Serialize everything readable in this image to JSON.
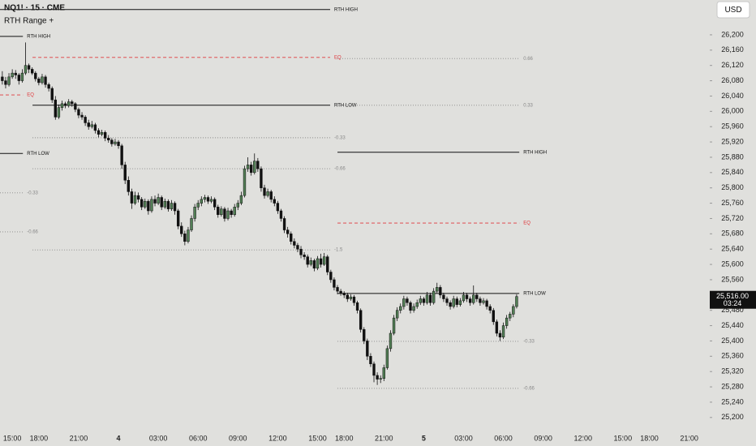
{
  "header": {
    "symbol": "NQ1! · 15 · CME",
    "indicator": "RTH Range +"
  },
  "currency": "USD",
  "chart_data": {
    "type": "candlestick",
    "up_color": "#527f55",
    "down_color": "#111111",
    "xlim": [
      -0.7,
      213.2
    ],
    "xticks": [
      {
        "value": 3,
        "label": "15:00"
      },
      {
        "value": 11,
        "label": "18:00"
      },
      {
        "value": 23,
        "label": "21:00"
      },
      {
        "value": 35,
        "label": "4"
      },
      {
        "value": 47,
        "label": "03:00"
      },
      {
        "value": 59,
        "label": "06:00"
      },
      {
        "value": 71,
        "label": "09:00"
      },
      {
        "value": 83,
        "label": "12:00"
      },
      {
        "value": 95,
        "label": "15:00"
      },
      {
        "value": 103,
        "label": "18:00"
      },
      {
        "value": 115,
        "label": "21:00"
      },
      {
        "value": 127,
        "label": "5"
      },
      {
        "value": 139,
        "label": "03:00"
      },
      {
        "value": 151,
        "label": "06:00"
      },
      {
        "value": 163,
        "label": "09:00"
      },
      {
        "value": 175,
        "label": "12:00"
      },
      {
        "value": 187,
        "label": "15:00"
      },
      {
        "value": 195,
        "label": "18:00"
      },
      {
        "value": 207,
        "label": "21:00"
      }
    ],
    "ylim": [
      25153,
      26291
    ],
    "yticks": [
      {
        "value": 25200,
        "label": "25,200"
      },
      {
        "value": 25240,
        "label": "25,240"
      },
      {
        "value": 25280,
        "label": "25,280"
      },
      {
        "value": 25320,
        "label": "25,320"
      },
      {
        "value": 25360,
        "label": "25,360"
      },
      {
        "value": 25400,
        "label": "25,400"
      },
      {
        "value": 25440,
        "label": "25,440"
      },
      {
        "value": 25480,
        "label": "25,480"
      },
      {
        "value": 25520,
        "label": "25,520"
      },
      {
        "value": 25560,
        "label": "25,560"
      },
      {
        "value": 25600,
        "label": "25,600"
      },
      {
        "value": 25640,
        "label": "25,640"
      },
      {
        "value": 25680,
        "label": "25,680"
      },
      {
        "value": 25720,
        "label": "25,720"
      },
      {
        "value": 25760,
        "label": "25,760"
      },
      {
        "value": 25800,
        "label": "25,800"
      },
      {
        "value": 25840,
        "label": "25,840"
      },
      {
        "value": 25880,
        "label": "25,880"
      },
      {
        "value": 25920,
        "label": "25,920"
      },
      {
        "value": 25960,
        "label": "25,960"
      },
      {
        "value": 26000,
        "label": "26,000"
      },
      {
        "value": 26040,
        "label": "26,040"
      },
      {
        "value": 26080,
        "label": "26,080"
      },
      {
        "value": 26120,
        "label": "26,120"
      },
      {
        "value": 26160,
        "label": "26,160"
      },
      {
        "value": 26200,
        "label": "26,200"
      }
    ],
    "candles": [
      [
        26090,
        26105,
        26070,
        26080
      ],
      [
        26080,
        26090,
        26060,
        26070
      ],
      [
        26070,
        26100,
        26065,
        26090
      ],
      [
        26090,
        26110,
        26085,
        26100
      ],
      [
        26100,
        26108,
        26085,
        26095
      ],
      [
        26095,
        26100,
        26070,
        26080
      ],
      [
        26080,
        26110,
        26075,
        26100
      ],
      [
        26100,
        26180,
        26095,
        26120
      ],
      [
        26120,
        26125,
        26100,
        26110
      ],
      [
        26110,
        26115,
        26095,
        26100
      ],
      [
        26100,
        26105,
        26078,
        26085
      ],
      [
        26085,
        26090,
        26068,
        26075
      ],
      [
        26075,
        26098,
        26070,
        26090
      ],
      [
        26090,
        26095,
        26062,
        26070
      ],
      [
        26070,
        26075,
        26052,
        26060
      ],
      [
        26060,
        26065,
        26022,
        26030
      ],
      [
        26030,
        26040,
        25978,
        25985
      ],
      [
        25985,
        26018,
        25980,
        26010
      ],
      [
        26010,
        26028,
        26002,
        26020
      ],
      [
        26020,
        26025,
        26008,
        26015
      ],
      [
        26015,
        26032,
        26010,
        26025
      ],
      [
        26025,
        26030,
        26012,
        26020
      ],
      [
        26020,
        26024,
        25998,
        26005
      ],
      [
        26005,
        26010,
        25982,
        25990
      ],
      [
        25990,
        25998,
        25978,
        25985
      ],
      [
        25985,
        25990,
        25962,
        25970
      ],
      [
        25970,
        25978,
        25952,
        25960
      ],
      [
        25960,
        25975,
        25955,
        25965
      ],
      [
        25965,
        25970,
        25942,
        25950
      ],
      [
        25950,
        25956,
        25932,
        25940
      ],
      [
        25940,
        25952,
        25935,
        25945
      ],
      [
        25945,
        25950,
        25922,
        25930
      ],
      [
        25930,
        25938,
        25918,
        25925
      ],
      [
        25925,
        25930,
        25908,
        25915
      ],
      [
        25915,
        25928,
        25910,
        25920
      ],
      [
        25920,
        25925,
        25902,
        25910
      ],
      [
        25910,
        25915,
        25850,
        25860
      ],
      [
        25860,
        25868,
        25810,
        25820
      ],
      [
        25820,
        25830,
        25780,
        25790
      ],
      [
        25790,
        25798,
        25745,
        25760
      ],
      [
        25760,
        25790,
        25755,
        25780
      ],
      [
        25780,
        25788,
        25762,
        25770
      ],
      [
        25770,
        25776,
        25742,
        25750
      ],
      [
        25750,
        25772,
        25745,
        25765
      ],
      [
        25765,
        25770,
        25730,
        25740
      ],
      [
        25740,
        25778,
        25735,
        25770
      ],
      [
        25770,
        25780,
        25752,
        25760
      ],
      [
        25760,
        25785,
        25755,
        25775
      ],
      [
        25775,
        25780,
        25742,
        25750
      ],
      [
        25750,
        25772,
        25745,
        25765
      ],
      [
        25765,
        25770,
        25738,
        25745
      ],
      [
        25745,
        25768,
        25740,
        25760
      ],
      [
        25760,
        25765,
        25730,
        25740
      ],
      [
        25740,
        25745,
        25692,
        25700
      ],
      [
        25700,
        25710,
        25672,
        25680
      ],
      [
        25680,
        25688,
        25650,
        25660
      ],
      [
        25660,
        25698,
        25655,
        25690
      ],
      [
        25690,
        25728,
        25685,
        25720
      ],
      [
        25720,
        25758,
        25712,
        25750
      ],
      [
        25750,
        25768,
        25742,
        25760
      ],
      [
        25760,
        25778,
        25752,
        25770
      ],
      [
        25770,
        25782,
        25762,
        25775
      ],
      [
        25775,
        25780,
        25758,
        25765
      ],
      [
        25765,
        25778,
        25760,
        25770
      ],
      [
        25770,
        25775,
        25742,
        25750
      ],
      [
        25750,
        25756,
        25722,
        25730
      ],
      [
        25730,
        25752,
        25725,
        25745
      ],
      [
        25745,
        25750,
        25712,
        25720
      ],
      [
        25720,
        25748,
        25715,
        25740
      ],
      [
        25740,
        25745,
        25722,
        25730
      ],
      [
        25730,
        25758,
        25725,
        25750
      ],
      [
        25750,
        25768,
        25742,
        25760
      ],
      [
        25760,
        25790,
        25755,
        25780
      ],
      [
        25780,
        25858,
        25775,
        25850
      ],
      [
        25850,
        25880,
        25842,
        25860
      ],
      [
        25860,
        25868,
        25832,
        25840
      ],
      [
        25840,
        25890,
        25835,
        25870
      ],
      [
        25870,
        25878,
        25842,
        25850
      ],
      [
        25850,
        25856,
        25790,
        25800
      ],
      [
        25800,
        25808,
        25772,
        25780
      ],
      [
        25780,
        25798,
        25775,
        25790
      ],
      [
        25790,
        25795,
        25762,
        25770
      ],
      [
        25770,
        25778,
        25752,
        25760
      ],
      [
        25760,
        25766,
        25732,
        25740
      ],
      [
        25740,
        25745,
        25712,
        25720
      ],
      [
        25720,
        25726,
        25682,
        25690
      ],
      [
        25690,
        25698,
        25670,
        25680
      ],
      [
        25680,
        25686,
        25652,
        25660
      ],
      [
        25660,
        25668,
        25642,
        25650
      ],
      [
        25650,
        25656,
        25632,
        25640
      ],
      [
        25640,
        25648,
        25616,
        25625
      ],
      [
        25625,
        25632,
        25612,
        25620
      ],
      [
        25620,
        25626,
        25592,
        25600
      ],
      [
        25600,
        25618,
        25595,
        25610
      ],
      [
        25610,
        25615,
        25582,
        25590
      ],
      [
        25590,
        25622,
        25585,
        25615
      ],
      [
        25615,
        25628,
        25592,
        25600
      ],
      [
        25600,
        25630,
        25596,
        25620
      ],
      [
        25620,
        25625,
        25572,
        25580
      ],
      [
        25580,
        25586,
        25552,
        25560
      ],
      [
        25560,
        25566,
        25532,
        25540
      ],
      [
        25540,
        25546,
        25522,
        25530
      ],
      [
        25530,
        25536,
        25518,
        25525
      ],
      [
        25525,
        25530,
        25512,
        25520
      ],
      [
        25520,
        25526,
        25502,
        25510
      ],
      [
        25510,
        25522,
        25505,
        25515
      ],
      [
        25515,
        25520,
        25492,
        25500
      ],
      [
        25500,
        25505,
        25472,
        25480
      ],
      [
        25480,
        25485,
        25422,
        25430
      ],
      [
        25430,
        25436,
        25392,
        25400
      ],
      [
        25400,
        25406,
        25350,
        25360
      ],
      [
        25360,
        25368,
        25332,
        25340
      ],
      [
        25340,
        25346,
        25292,
        25310
      ],
      [
        25310,
        25318,
        25285,
        25300
      ],
      [
        25300,
        25310,
        25290,
        25302
      ],
      [
        25302,
        25338,
        25295,
        25330
      ],
      [
        25330,
        25388,
        25325,
        25380
      ],
      [
        25380,
        25428,
        25372,
        25420
      ],
      [
        25420,
        25468,
        25415,
        25460
      ],
      [
        25460,
        25488,
        25452,
        25480
      ],
      [
        25480,
        25498,
        25472,
        25490
      ],
      [
        25490,
        25518,
        25482,
        25510
      ],
      [
        25510,
        25516,
        25492,
        25500
      ],
      [
        25500,
        25505,
        25472,
        25480
      ],
      [
        25480,
        25498,
        25474,
        25490
      ],
      [
        25490,
        25508,
        25484,
        25500
      ],
      [
        25500,
        25518,
        25494,
        25510
      ],
      [
        25510,
        25515,
        25492,
        25500
      ],
      [
        25500,
        25528,
        25495,
        25520
      ],
      [
        25520,
        25526,
        25492,
        25500
      ],
      [
        25500,
        25538,
        25495,
        25530
      ],
      [
        25530,
        25552,
        25525,
        25540
      ],
      [
        25540,
        25546,
        25512,
        25520
      ],
      [
        25520,
        25526,
        25502,
        25510
      ],
      [
        25510,
        25516,
        25492,
        25500
      ],
      [
        25500,
        25506,
        25482,
        25490
      ],
      [
        25490,
        25518,
        25485,
        25510
      ],
      [
        25510,
        25516,
        25488,
        25495
      ],
      [
        25495,
        25512,
        25490,
        25505
      ],
      [
        25505,
        25528,
        25500,
        25520
      ],
      [
        25520,
        25526,
        25502,
        25510
      ],
      [
        25510,
        25516,
        25492,
        25500
      ],
      [
        25500,
        25545,
        25495,
        25520
      ],
      [
        25520,
        25526,
        25502,
        25510
      ],
      [
        25510,
        25516,
        25492,
        25500
      ],
      [
        25500,
        25512,
        25495,
        25505
      ],
      [
        25505,
        25510,
        25482,
        25490
      ],
      [
        25490,
        25496,
        25472,
        25480
      ],
      [
        25480,
        25486,
        25442,
        25450
      ],
      [
        25450,
        25456,
        25412,
        25420
      ],
      [
        25420,
        25428,
        25400,
        25410
      ],
      [
        25410,
        25448,
        25405,
        25440
      ],
      [
        25440,
        25468,
        25432,
        25460
      ],
      [
        25460,
        25476,
        25452,
        25470
      ],
      [
        25470,
        25496,
        25462,
        25490
      ],
      [
        25490,
        25522,
        25485,
        25516
      ]
    ],
    "levels": [
      {
        "label": "RTH HIGH",
        "price": 26266,
        "start": -0.7,
        "end": 98.8,
        "style": "solid",
        "color": "#111111"
      },
      {
        "label": "RTH HIGH",
        "price": 26196,
        "start": -0.7,
        "end": 6.2,
        "style": "solid",
        "color": "#111111"
      },
      {
        "label": "EQ",
        "price": 26141,
        "start": 9.1,
        "end": 98.8,
        "style": "dashed",
        "color": "#e0373b"
      },
      {
        "label": "0.66",
        "price": 26138,
        "start": 101,
        "end": 155.8,
        "style": "dotted",
        "color": "#888888"
      },
      {
        "label": "EQ",
        "price": 26043,
        "start": -0.7,
        "end": 6.2,
        "style": "dashed",
        "color": "#e0373b"
      },
      {
        "label": "RTH LOW",
        "price": 26016,
        "start": 9.1,
        "end": 98.8,
        "style": "solid",
        "color": "#111111"
      },
      {
        "label": "0.33",
        "price": 26016,
        "start": 101,
        "end": 155.8,
        "style": "dotted",
        "color": "#888888"
      },
      {
        "label": "-0.33",
        "price": 25931,
        "start": 9.1,
        "end": 98.8,
        "style": "dotted",
        "color": "#888888"
      },
      {
        "label": "RTH LOW",
        "price": 25890,
        "start": -0.7,
        "end": 6.2,
        "style": "solid",
        "color": "#111111"
      },
      {
        "label": "RTH HIGH",
        "price": 25893,
        "start": 101,
        "end": 155.8,
        "style": "solid",
        "color": "#111111"
      },
      {
        "label": "-0.66",
        "price": 25850,
        "start": 9.1,
        "end": 98.8,
        "style": "dotted",
        "color": "#888888"
      },
      {
        "label": "-0.33",
        "price": 25787,
        "start": -0.7,
        "end": 6.2,
        "style": "dotted",
        "color": "#888888"
      },
      {
        "label": "EQ",
        "price": 25708,
        "start": 101,
        "end": 155.8,
        "style": "dashed",
        "color": "#e0373b"
      },
      {
        "label": "-0.66",
        "price": 25685,
        "start": -0.7,
        "end": 6.2,
        "style": "dotted",
        "color": "#888888"
      },
      {
        "label": "-1.5",
        "price": 25638,
        "start": 9.1,
        "end": 98.8,
        "style": "dotted",
        "color": "#888888"
      },
      {
        "label": "RTH LOW",
        "price": 25524,
        "start": 101,
        "end": 155.8,
        "style": "solid",
        "color": "#111111"
      },
      {
        "label": "-0.33",
        "price": 25399,
        "start": 101,
        "end": 155.8,
        "style": "dotted",
        "color": "#888888"
      },
      {
        "label": "-0.66",
        "price": 25276,
        "start": 101,
        "end": 155.8,
        "style": "dotted",
        "color": "#888888"
      }
    ],
    "price_label": {
      "value": 25516,
      "label": "25,516.00"
    },
    "countdown": "03:24"
  }
}
